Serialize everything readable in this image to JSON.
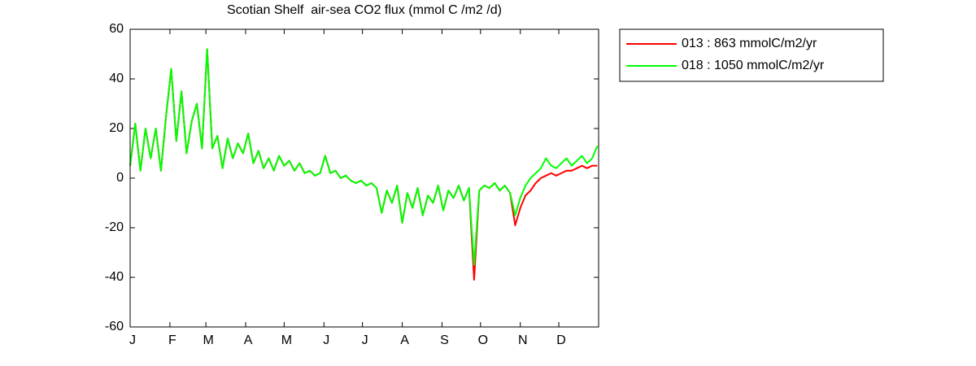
{
  "chart_data": {
    "type": "line",
    "title": "Scotian Shelf  air-sea CO2 flux (mmol C /m2 /d)",
    "x": [
      1,
      5,
      9,
      13,
      17,
      21,
      25,
      29,
      33,
      37,
      41,
      45,
      49,
      53,
      57,
      61,
      65,
      69,
      73,
      77,
      81,
      85,
      89,
      93,
      97,
      101,
      105,
      109,
      113,
      117,
      121,
      125,
      129,
      133,
      137,
      141,
      145,
      149,
      153,
      157,
      161,
      165,
      169,
      173,
      177,
      181,
      185,
      189,
      193,
      197,
      201,
      205,
      209,
      213,
      217,
      221,
      225,
      229,
      233,
      237,
      241,
      245,
      249,
      253,
      257,
      261,
      265,
      269,
      273,
      277,
      281,
      285,
      289,
      293,
      297,
      301,
      305,
      309,
      313,
      317,
      321,
      325,
      329,
      333,
      337,
      341,
      345,
      349,
      353,
      357,
      361,
      365
    ],
    "series": [
      {
        "name": "013 : 863 mmolC/m2/yr",
        "color": "#ff0000",
        "values": [
          5,
          22,
          3,
          20,
          8,
          20,
          3,
          25,
          44,
          15,
          35,
          10,
          23,
          30,
          12,
          52,
          12,
          17,
          4,
          16,
          8,
          14,
          10,
          18,
          6,
          11,
          4,
          8,
          3,
          9,
          5,
          7,
          3,
          6,
          2,
          3,
          1,
          2,
          9,
          2,
          3,
          0,
          1,
          -1,
          -2,
          -1,
          -3,
          -2,
          -4,
          -14,
          -5,
          -10,
          -3,
          -18,
          -6,
          -12,
          -4,
          -15,
          -7,
          -10,
          -3,
          -13,
          -5,
          -8,
          -3,
          -9,
          -4,
          -41,
          -5,
          -3,
          -4,
          -2,
          -5,
          -3,
          -6,
          -19,
          -12,
          -7,
          -5,
          -2,
          0,
          1,
          2,
          1,
          2,
          3,
          3,
          4,
          5,
          4,
          5,
          5
        ]
      },
      {
        "name": "018 : 1050 mmolC/m2/yr",
        "color": "#00ff00",
        "values": [
          5,
          22,
          3,
          20,
          8,
          20,
          3,
          25,
          44,
          15,
          35,
          10,
          23,
          30,
          12,
          52,
          12,
          17,
          4,
          16,
          8,
          14,
          10,
          18,
          6,
          11,
          4,
          8,
          3,
          9,
          5,
          7,
          3,
          6,
          2,
          3,
          1,
          2,
          9,
          2,
          3,
          0,
          1,
          -1,
          -2,
          -1,
          -3,
          -2,
          -4,
          -14,
          -5,
          -10,
          -3,
          -18,
          -6,
          -12,
          -4,
          -15,
          -7,
          -10,
          -3,
          -13,
          -5,
          -8,
          -3,
          -9,
          -4,
          -35,
          -5,
          -3,
          -4,
          -2,
          -5,
          -3,
          -6,
          -15,
          -8,
          -3,
          0,
          2,
          4,
          8,
          5,
          4,
          6,
          8,
          5,
          7,
          9,
          6,
          8,
          13
        ]
      }
    ],
    "xlim": [
      1,
      366
    ],
    "xticks": [
      {
        "value": 1,
        "label": "J"
      },
      {
        "value": 32,
        "label": "F"
      },
      {
        "value": 60,
        "label": "M"
      },
      {
        "value": 91,
        "label": "A"
      },
      {
        "value": 121,
        "label": "M"
      },
      {
        "value": 152,
        "label": "J"
      },
      {
        "value": 182,
        "label": "J"
      },
      {
        "value": 213,
        "label": "A"
      },
      {
        "value": 244,
        "label": "S"
      },
      {
        "value": 274,
        "label": "O"
      },
      {
        "value": 305,
        "label": "N"
      },
      {
        "value": 335,
        "label": "D"
      }
    ],
    "ylim": [
      -60,
      60
    ],
    "yticks": [
      -60,
      -40,
      -20,
      0,
      20,
      40,
      60
    ],
    "grid": false,
    "legend": "northeast-outside"
  }
}
